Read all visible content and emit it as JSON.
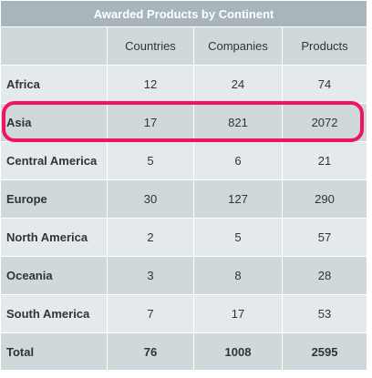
{
  "chart_data": {
    "type": "table",
    "title": "Awarded Products by Continent",
    "columns": [
      "Countries",
      "Companies",
      "Products"
    ],
    "rows": [
      {
        "label": "Africa",
        "values": [
          "12",
          "24",
          "74"
        ]
      },
      {
        "label": "Asia",
        "values": [
          "17",
          "821",
          "2072"
        ]
      },
      {
        "label": "Central America",
        "values": [
          "5",
          "6",
          "21"
        ]
      },
      {
        "label": "Europe",
        "values": [
          "30",
          "127",
          "290"
        ]
      },
      {
        "label": "North America",
        "values": [
          "2",
          "5",
          "57"
        ]
      },
      {
        "label": "Oceania",
        "values": [
          "3",
          "8",
          "28"
        ]
      },
      {
        "label": "South America",
        "values": [
          "7",
          "17",
          "53"
        ]
      }
    ],
    "total": {
      "label": "Total",
      "values": [
        "76",
        "1008",
        "2595"
      ]
    },
    "highlighted_row": "Asia"
  },
  "colors": {
    "title_bg": "#a8b6bc",
    "row_light": "#e4eaeb",
    "row_dark": "#cfd8db",
    "highlight": "#f0135e"
  }
}
